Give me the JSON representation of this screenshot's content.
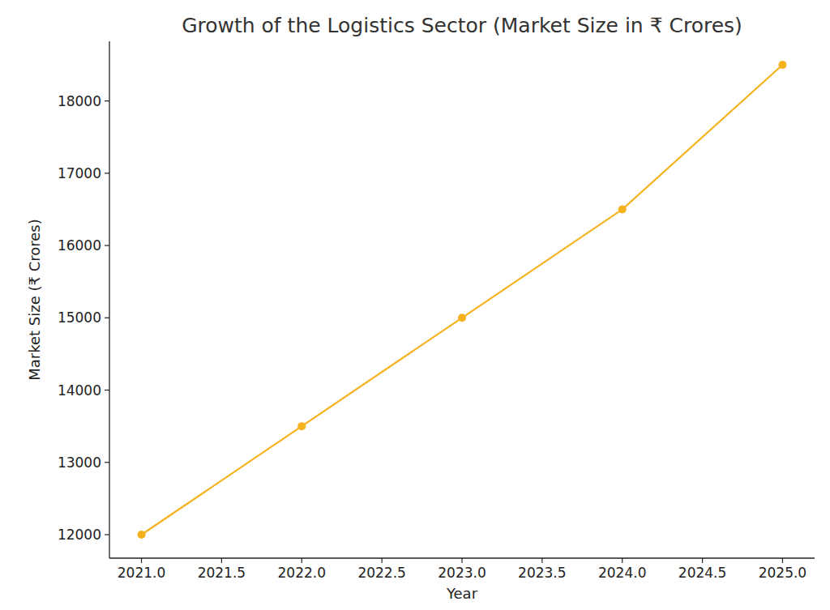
{
  "chart_data": {
    "type": "line",
    "title": "Growth of the Logistics Sector (Market Size in ₹ Crores)",
    "x_label": "Year",
    "y_label": "Market Size (₹ Crores)",
    "x": [
      2021,
      2022,
      2023,
      2024,
      2025
    ],
    "values": [
      12000,
      13500,
      15000,
      16500,
      18500
    ],
    "color": "#f5b21c",
    "marker": "circle",
    "line_style": "solid",
    "grid": false,
    "xlim": [
      2020.8,
      2025.2
    ],
    "xticks": [
      {
        "value": 2021,
        "label": "2021.0"
      },
      {
        "value": 2021.5,
        "label": "2021.5"
      },
      {
        "value": 2022,
        "label": "2022.0"
      },
      {
        "value": 2022.5,
        "label": "2022.5"
      },
      {
        "value": 2023,
        "label": "2023.0"
      },
      {
        "value": 2023.5,
        "label": "2023.5"
      },
      {
        "value": 2024,
        "label": "2024.0"
      },
      {
        "value": 2024.5,
        "label": "2024.5"
      },
      {
        "value": 2025,
        "label": "2025.0"
      }
    ],
    "ylim": [
      11675,
      18825
    ],
    "yticks": [
      12000,
      13000,
      14000,
      15000,
      16000,
      17000,
      18000
    ]
  }
}
